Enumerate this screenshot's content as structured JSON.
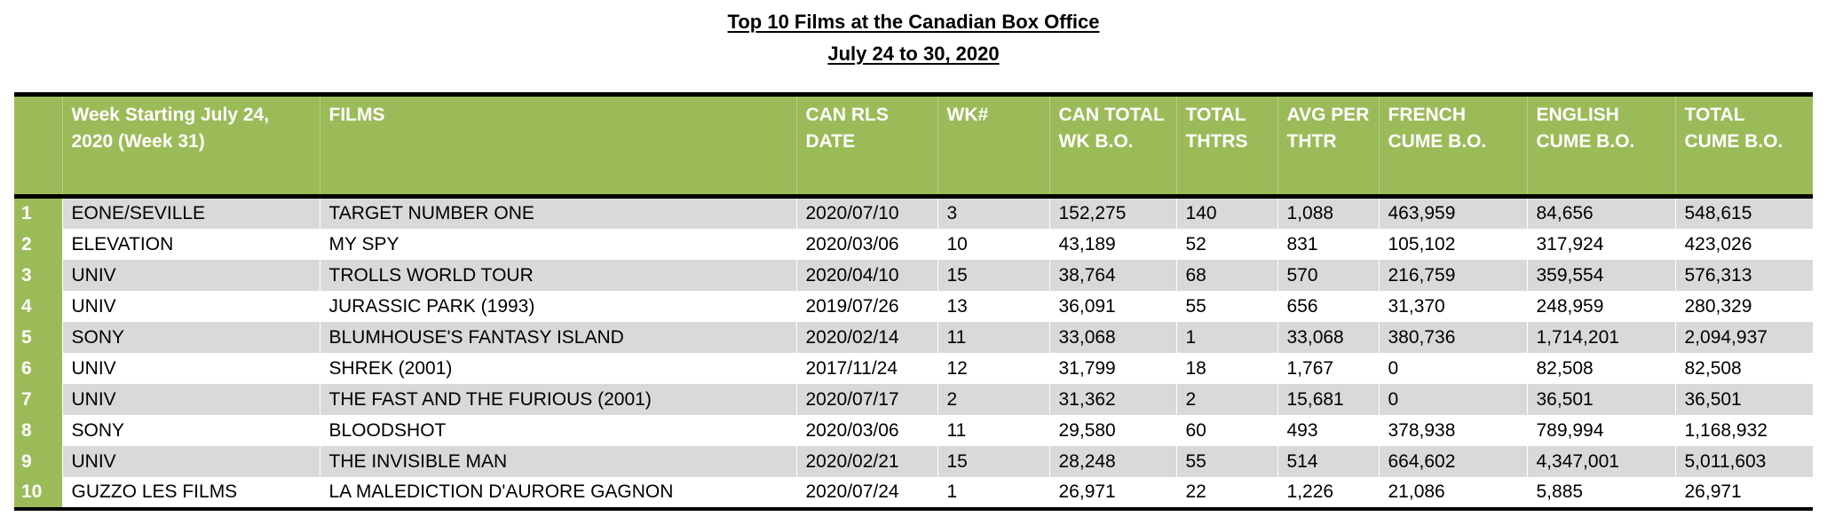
{
  "title": "Top 10 Films at the Canadian Box Office",
  "subtitle": "July 24 to 30, 2020",
  "headers": {
    "rank": "",
    "distributor": "Week Starting July 24, 2020 (Week  31)",
    "film": "FILMS",
    "release": "CAN RLS DATE",
    "week": "WK#",
    "weekend": "CAN TOTAL WK B.O.",
    "theatres": "TOTAL THTRS",
    "avg": "AVG PER THTR",
    "french": "FRENCH CUME B.O.",
    "english": "ENGLISH CUME B.O.",
    "total": "TOTAL CUME B.O."
  },
  "rows": [
    {
      "rank": "1",
      "distributor": "EONE/SEVILLE",
      "film": "TARGET NUMBER ONE",
      "release": "2020/07/10",
      "week": "3",
      "weekend": "152,275",
      "theatres": "140",
      "avg": "1,088",
      "french": "463,959",
      "english": "84,656",
      "total": "548,615"
    },
    {
      "rank": "2",
      "distributor": "ELEVATION",
      "film": "MY SPY",
      "release": "2020/03/06",
      "week": "10",
      "weekend": "43,189",
      "theatres": "52",
      "avg": "831",
      "french": "105,102",
      "english": "317,924",
      "total": "423,026"
    },
    {
      "rank": "3",
      "distributor": "UNIV",
      "film": "TROLLS WORLD TOUR",
      "release": "2020/04/10",
      "week": "15",
      "weekend": "38,764",
      "theatres": "68",
      "avg": "570",
      "french": "216,759",
      "english": "359,554",
      "total": "576,313"
    },
    {
      "rank": "4",
      "distributor": "UNIV",
      "film": "JURASSIC PARK (1993)",
      "release": "2019/07/26",
      "week": "13",
      "weekend": "36,091",
      "theatres": "55",
      "avg": "656",
      "french": "31,370",
      "english": "248,959",
      "total": "280,329"
    },
    {
      "rank": "5",
      "distributor": "SONY",
      "film": "BLUMHOUSE'S FANTASY ISLAND",
      "release": "2020/02/14",
      "week": "11",
      "weekend": "33,068",
      "theatres": "1",
      "avg": "33,068",
      "french": "380,736",
      "english": "1,714,201",
      "total": "2,094,937"
    },
    {
      "rank": "6",
      "distributor": "UNIV",
      "film": "SHREK (2001)",
      "release": "2017/11/24",
      "week": "12",
      "weekend": "31,799",
      "theatres": "18",
      "avg": "1,767",
      "french": "0",
      "english": "82,508",
      "total": "82,508"
    },
    {
      "rank": "7",
      "distributor": "UNIV",
      "film": "THE FAST AND THE FURIOUS (2001)",
      "release": "2020/07/17",
      "week": "2",
      "weekend": "31,362",
      "theatres": "2",
      "avg": "15,681",
      "french": "0",
      "english": "36,501",
      "total": "36,501"
    },
    {
      "rank": "8",
      "distributor": "SONY",
      "film": "BLOODSHOT",
      "release": "2020/03/06",
      "week": "11",
      "weekend": "29,580",
      "theatres": "60",
      "avg": "493",
      "french": "378,938",
      "english": "789,994",
      "total": "1,168,932"
    },
    {
      "rank": "9",
      "distributor": "UNIV",
      "film": "THE INVISIBLE MAN",
      "release": "2020/02/21",
      "week": "15",
      "weekend": "28,248",
      "theatres": "55",
      "avg": "514",
      "french": "664,602",
      "english": "4,347,001",
      "total": "5,011,603"
    },
    {
      "rank": "10",
      "distributor": "GUZZO LES FILMS",
      "film": "LA MALEDICTION D'AURORE GAGNON",
      "release": "2020/07/24",
      "week": "1",
      "weekend": "26,971",
      "theatres": "22",
      "avg": "1,226",
      "french": "21,086",
      "english": "5,885",
      "total": "26,971"
    }
  ],
  "colors": {
    "header_green": "#9bbb59",
    "row_shade": "#d9d9d9",
    "header_text": "#ffffff"
  }
}
